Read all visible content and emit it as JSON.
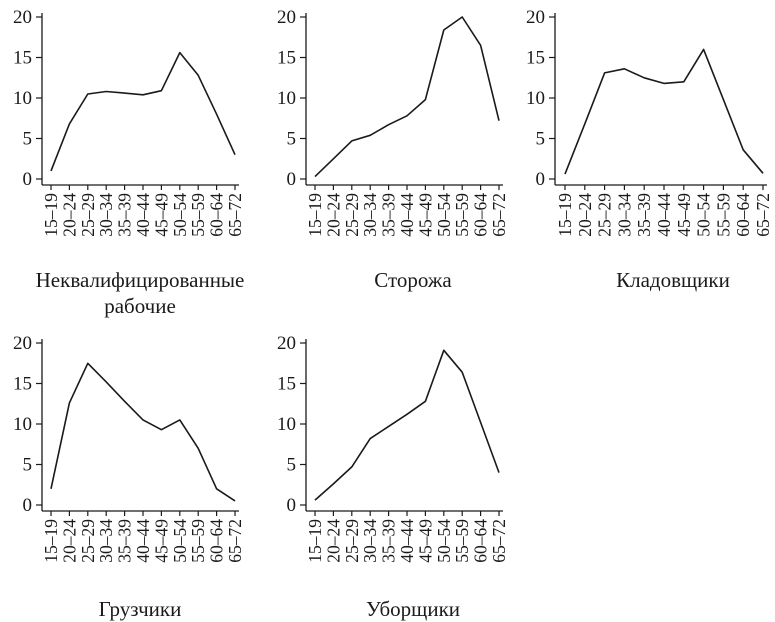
{
  "chart_data": [
    {
      "type": "line",
      "title_lines": [
        "Неквалифицированные",
        "рабочие"
      ],
      "categories": [
        "15–19",
        "20–24",
        "25–29",
        "30–34",
        "35–39",
        "40–44",
        "45–49",
        "50–54",
        "55–59",
        "60–64",
        "65–72"
      ],
      "yticks": [
        "0",
        "5",
        "10",
        "15",
        "20"
      ],
      "ylim": [
        0,
        20
      ],
      "values": [
        1.0,
        6.8,
        10.5,
        10.8,
        10.6,
        10.4,
        10.9,
        15.6,
        12.8,
        8.0,
        3.0
      ]
    },
    {
      "type": "line",
      "title_lines": [
        "Сторожа"
      ],
      "categories": [
        "15–19",
        "20–24",
        "25–29",
        "30–34",
        "35–39",
        "40–44",
        "45–49",
        "50–54",
        "55–59",
        "60–64",
        "65–72"
      ],
      "yticks": [
        "0",
        "5",
        "10",
        "15",
        "20"
      ],
      "ylim": [
        0,
        20
      ],
      "values": [
        0.3,
        2.5,
        4.7,
        5.4,
        6.7,
        7.8,
        9.8,
        18.4,
        20.0,
        16.5,
        7.2
      ]
    },
    {
      "type": "line",
      "title_lines": [
        "Кладовщики"
      ],
      "categories": [
        "15–19",
        "20–24",
        "25–29",
        "30–34",
        "35–39",
        "40–44",
        "45–49",
        "50–54",
        "55–59",
        "60–64",
        "65–72"
      ],
      "yticks": [
        "0",
        "5",
        "10",
        "15",
        "20"
      ],
      "ylim": [
        0,
        20
      ],
      "values": [
        0.6,
        6.8,
        13.1,
        13.6,
        12.5,
        11.8,
        12.0,
        16.0,
        9.8,
        3.6,
        0.7
      ]
    },
    {
      "type": "line",
      "title_lines": [
        "Грузчики"
      ],
      "categories": [
        "15–19",
        "20–24",
        "25–29",
        "30–34",
        "35–39",
        "40–44",
        "45–49",
        "50–54",
        "55–59",
        "60–64",
        "65–72"
      ],
      "yticks": [
        "0",
        "5",
        "10",
        "15",
        "20"
      ],
      "ylim": [
        0,
        20
      ],
      "values": [
        2.0,
        12.6,
        17.5,
        15.2,
        12.8,
        10.5,
        9.3,
        10.5,
        7.0,
        2.0,
        0.5
      ]
    },
    {
      "type": "line",
      "title_lines": [
        "Уборщики"
      ],
      "categories": [
        "15–19",
        "20–24",
        "25–29",
        "30–34",
        "35–39",
        "40–44",
        "45–49",
        "50–54",
        "55–59",
        "60–64",
        "65–72"
      ],
      "yticks": [
        "0",
        "5",
        "10",
        "15",
        "20"
      ],
      "ylim": [
        0,
        20
      ],
      "values": [
        0.6,
        2.6,
        4.7,
        8.2,
        9.7,
        11.2,
        12.8,
        19.1,
        16.4,
        10.2,
        4.0
      ]
    }
  ]
}
